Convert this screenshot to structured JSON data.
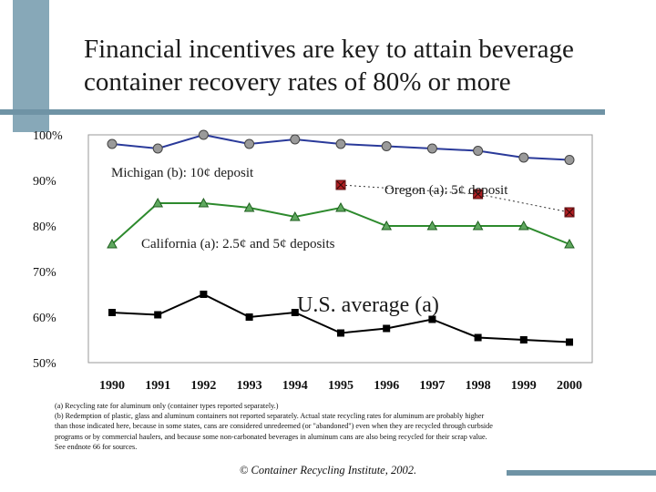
{
  "slide": {
    "title_line1": "Financial incentives are key to attain beverage",
    "title_line2": "container recovery rates of 80% or more",
    "footnote_a": "(a) Recycling rate for aluminum only (container types reported separately.)",
    "footnote_b1": "(b) Redemption of plastic, glass and aluminum containers not reported separately.  Actual state recycling rates for aluminum are probably higher",
    "footnote_b2": "than those indicated here, because in some states, cans are considered unredeemed (or \"abandoned\") even when they are recycled through curbside",
    "footnote_b3": "programs or by commercial haulers, and because some non-carbonated beverages in aluminum cans are also being recycled for their scrap value.",
    "footnote_c": " See endnote 66 for sources.",
    "copyright": "© Container Recycling Institute, 2002."
  },
  "colors": {
    "decoration": "#87a8b8",
    "grid": "#d9d9d9",
    "plot_border": "#9a9a9a"
  },
  "chart_data": {
    "type": "line",
    "x": [
      1990,
      1991,
      1992,
      1993,
      1994,
      1995,
      1996,
      1997,
      1998,
      1999,
      2000
    ],
    "x_tick_labels": [
      "1990",
      "1991",
      "1992",
      "1993",
      "1994",
      "1995",
      "1996",
      "1997",
      "1998",
      "1999",
      "2000"
    ],
    "y_tick_labels": [
      "100%",
      "90%",
      "80%",
      "70%",
      "60%",
      "50%"
    ],
    "ylim": [
      50,
      100
    ],
    "grid": false,
    "series": [
      {
        "name": "Michigan (b): 10¢ deposit",
        "values": [
          98,
          97,
          100,
          98,
          99,
          98,
          97.5,
          97,
          96.5,
          95,
          94.5
        ],
        "color": "#3d4aa8",
        "marker": "circle",
        "line_color": "#2a3a9a"
      },
      {
        "name": "Oregon (a): 5¢ deposit",
        "values": [
          null,
          null,
          null,
          null,
          null,
          89,
          null,
          null,
          87,
          null,
          83
        ],
        "color": "#c0282a",
        "marker": "x-square",
        "line_color": "#333333",
        "dashed": true
      },
      {
        "name": "California (a): 2.5¢ and 5¢ deposits",
        "values": [
          76,
          85,
          85,
          84,
          82,
          84,
          80,
          80,
          80,
          80,
          76
        ],
        "color": "#2d8a2d",
        "marker": "triangle",
        "line_color": "#2d8a2d"
      },
      {
        "name": "U.S. average (a)",
        "values": [
          61,
          60.5,
          65,
          60,
          61,
          56.5,
          57.5,
          59.5,
          55.5,
          55,
          54.5
        ],
        "color": "#000000",
        "marker": "square",
        "line_color": "#000000"
      }
    ]
  }
}
